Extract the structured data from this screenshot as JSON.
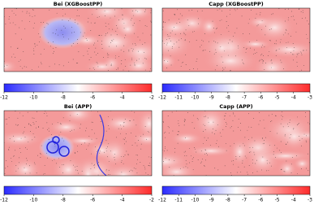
{
  "chart_data": [
    {
      "type": "heatmap",
      "title": "Bei (XGBoostPP)",
      "colormap": [
        "#2b2bff",
        "#ffffff",
        "#ff2b2b"
      ],
      "clim": [
        -12,
        -2
      ],
      "cticks": [
        -12,
        -10,
        -8,
        -6,
        -4,
        -2
      ]
    },
    {
      "type": "heatmap",
      "title": "Capp (XGBoostPP)",
      "colormap": [
        "#2b2bff",
        "#ffffff",
        "#ff2b2b"
      ],
      "clim": [
        -12,
        -3
      ],
      "cticks": [
        -12,
        -11,
        -10,
        -9,
        -8,
        -7,
        -6,
        -5,
        -4,
        -3
      ]
    },
    {
      "type": "heatmap",
      "title": "Bei (APP)",
      "colormap": [
        "#2b2bff",
        "#ffffff",
        "#ff2b2b"
      ],
      "clim": [
        -12,
        -2
      ],
      "cticks": [
        -12,
        -10,
        -8,
        -6,
        -4,
        -2
      ]
    },
    {
      "type": "heatmap",
      "title": "Capp (APP)",
      "colormap": [
        "#2b2bff",
        "#ffffff",
        "#ff2b2b"
      ],
      "clim": [
        -12,
        -3
      ],
      "cticks": [
        -12,
        -11,
        -10,
        -9,
        -8,
        -7,
        -6,
        -5,
        -4,
        -3
      ]
    }
  ]
}
